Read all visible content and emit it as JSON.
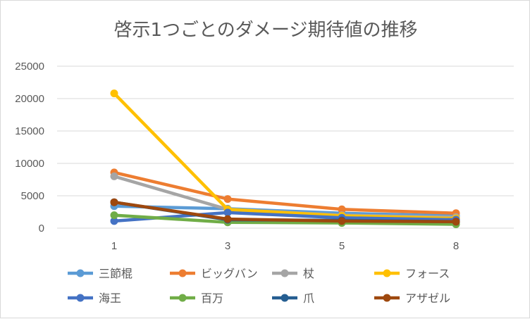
{
  "chart_data": {
    "type": "line",
    "title": "啓示1つごとのダメージ期待値の推移",
    "categories": [
      "1",
      "3",
      "5",
      "8"
    ],
    "ylim": [
      0,
      25000
    ],
    "yticks": [
      0,
      5000,
      10000,
      15000,
      20000,
      25000
    ],
    "grid": true,
    "legend": "bottom",
    "series": [
      {
        "name": "三節棍",
        "color": "#5B9BD5",
        "values": [
          3400,
          3000,
          2300,
          1900
        ]
      },
      {
        "name": "ビッグバン",
        "color": "#ED7D31",
        "values": [
          8600,
          4500,
          2900,
          2300
        ]
      },
      {
        "name": "杖",
        "color": "#A5A5A5",
        "values": [
          8000,
          2900,
          2000,
          1700
        ]
      },
      {
        "name": "フォース",
        "color": "#FFC000",
        "values": [
          20800,
          2900,
          1900,
          1500
        ]
      },
      {
        "name": "海王",
        "color": "#4472C4",
        "values": [
          1100,
          2400,
          1600,
          1300
        ]
      },
      {
        "name": "百万",
        "color": "#70AD47",
        "values": [
          2000,
          900,
          800,
          600
        ]
      },
      {
        "name": "爪",
        "color": "#255E91",
        "values": [
          4000,
          1300,
          1200,
          1000
        ]
      },
      {
        "name": "アザゼル",
        "color": "#9E480E",
        "values": [
          4000,
          1400,
          1100,
          1000
        ]
      }
    ]
  }
}
